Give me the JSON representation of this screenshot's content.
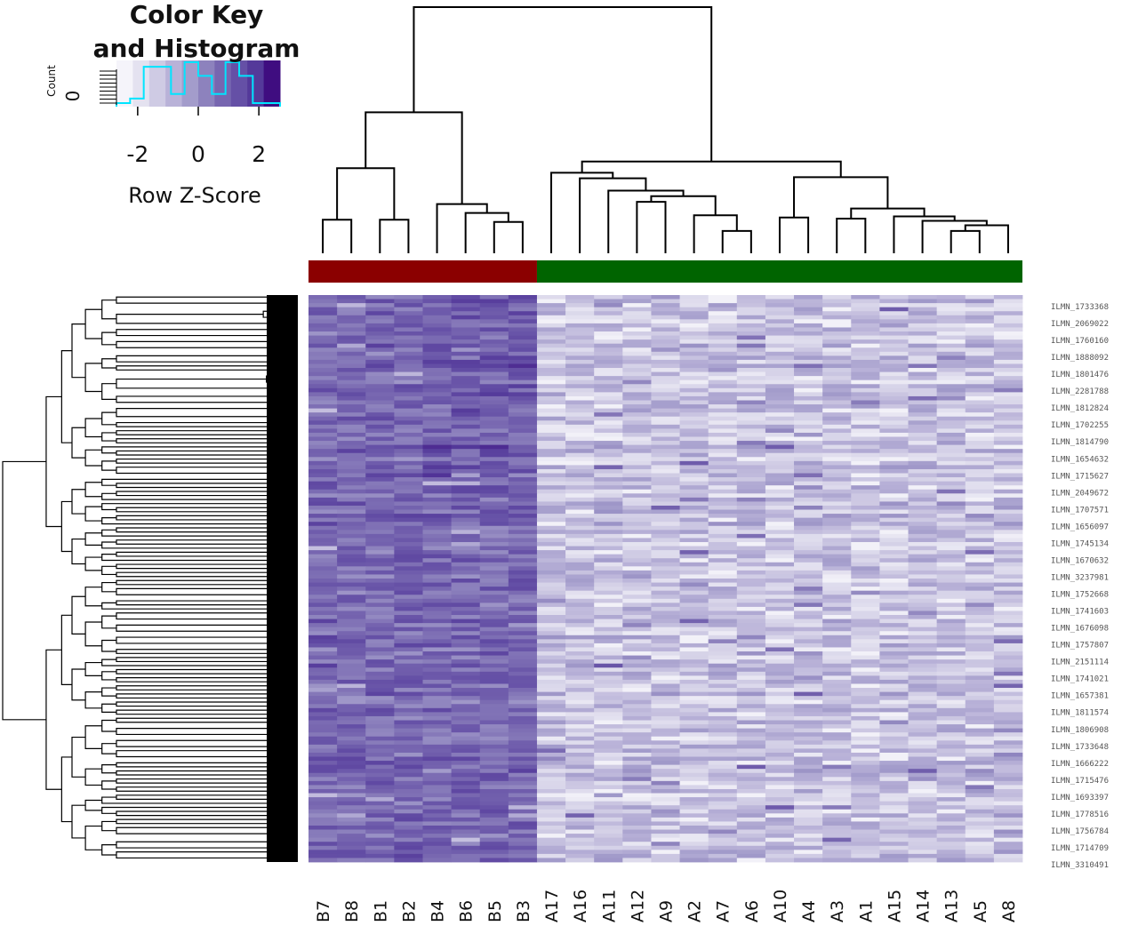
{
  "chart_data": {
    "type": "heatmap",
    "key": {
      "title_line1": "Color Key",
      "title_line2": "and Histogram",
      "xlabel": "Row Z-Score",
      "ylabel": "Count",
      "ytick": "0",
      "xticks": [
        "-2",
        "0",
        "2"
      ],
      "xlim": [
        -2.7,
        2.7
      ],
      "palette": [
        "#f5f4fa",
        "#e4e2f0",
        "#cfcbe4",
        "#b9b2d8",
        "#a39ccb",
        "#8d82bd",
        "#7766b0",
        "#6550a6",
        "#54399a",
        "#3f0d80"
      ],
      "histogram_color": "#00e5ff",
      "histogram": [
        0,
        1,
        8,
        8,
        2,
        9,
        6,
        2,
        9,
        6,
        0,
        0
      ]
    },
    "columns": [
      "B7",
      "B8",
      "B1",
      "B2",
      "B4",
      "B6",
      "B5",
      "B3",
      "A17",
      "A16",
      "A11",
      "A12",
      "A9",
      "A2",
      "A7",
      "A6",
      "A10",
      "A4",
      "A3",
      "A1",
      "A15",
      "A14",
      "A13",
      "A5",
      "A8"
    ],
    "groups": [
      {
        "columns": [
          "B7",
          "B8",
          "B1",
          "B2",
          "B4",
          "B6",
          "B5",
          "B3"
        ],
        "color": "#8b0000"
      },
      {
        "columns": [
          "A17",
          "A16",
          "A11",
          "A12",
          "A9",
          "A2",
          "A7",
          "A6",
          "A10",
          "A4",
          "A3",
          "A1",
          "A15",
          "A14",
          "A13",
          "A5",
          "A8"
        ],
        "color": "#006400"
      }
    ],
    "row_labels": [
      "ILMN_1733368",
      "ILMN_2069022",
      "ILMN_1760160",
      "ILMN_1888092",
      "ILMN_1801476",
      "ILMN_2281788",
      "ILMN_1812824",
      "ILMN_1702255",
      "ILMN_1814790",
      "ILMN_1654632",
      "ILMN_1715627",
      "ILMN_2049672",
      "ILMN_1707571",
      "ILMN_1656097",
      "ILMN_1745134",
      "ILMN_1670632",
      "ILMN_3237981",
      "ILMN_1752668",
      "ILMN_1741603",
      "ILMN_1676098",
      "ILMN_1757807",
      "ILMN_2151114",
      "ILMN_1741021",
      "ILMN_1657381",
      "ILMN_1811574",
      "ILMN_1806908",
      "ILMN_1733648",
      "ILMN_1666222",
      "ILMN_1715476",
      "ILMN_1693397",
      "ILMN_1778516",
      "ILMN_1756784",
      "ILMN_1714709",
      "ILMN_3310491"
    ],
    "n_rows": 140,
    "column_dendrogram": {
      "leaves": [
        "B7",
        "B8",
        "B1",
        "B2",
        "B4",
        "B6",
        "B5",
        "B3",
        "A17",
        "A16",
        "A11",
        "A12",
        "A9",
        "A2",
        "A7",
        "A6",
        "A10",
        "A4",
        "A3",
        "A1",
        "A15",
        "A14",
        "A13",
        "A5",
        "A8"
      ],
      "merges": [
        [
          -1,
          -2,
          1.5
        ],
        [
          -3,
          -4,
          1.5
        ],
        [
          -7,
          -8,
          1.4
        ],
        [
          -6,
          3,
          1.8
        ],
        [
          -5,
          4,
          2.2
        ],
        [
          1,
          2,
          3.8
        ],
        [
          5,
          6,
          6.3
        ],
        [
          -23,
          -24,
          1.0
        ],
        [
          -25,
          8,
          1.25
        ],
        [
          -22,
          9,
          1.45
        ],
        [
          -21,
          10,
          1.65
        ],
        [
          -19,
          -20,
          1.55
        ],
        [
          12,
          11,
          2.0
        ],
        [
          -17,
          -18,
          1.6
        ],
        [
          14,
          13,
          3.4
        ],
        [
          -15,
          -16,
          1.0
        ],
        [
          -14,
          16,
          1.7
        ],
        [
          -12,
          -13,
          2.3
        ],
        [
          18,
          17,
          2.55
        ],
        [
          -11,
          19,
          2.8
        ],
        [
          -10,
          20,
          3.35
        ],
        [
          -9,
          21,
          3.6
        ],
        [
          22,
          15,
          4.1
        ],
        [
          7,
          23,
          11.0
        ]
      ],
      "top_height": 11.0
    },
    "row_dendrogram": {
      "split_level_fractions": [
        0.0,
        0.12,
        0.27,
        0.37,
        0.5,
        0.66,
        0.8
      ]
    },
    "high_expression_group": "B",
    "low_expression_group": "A"
  }
}
